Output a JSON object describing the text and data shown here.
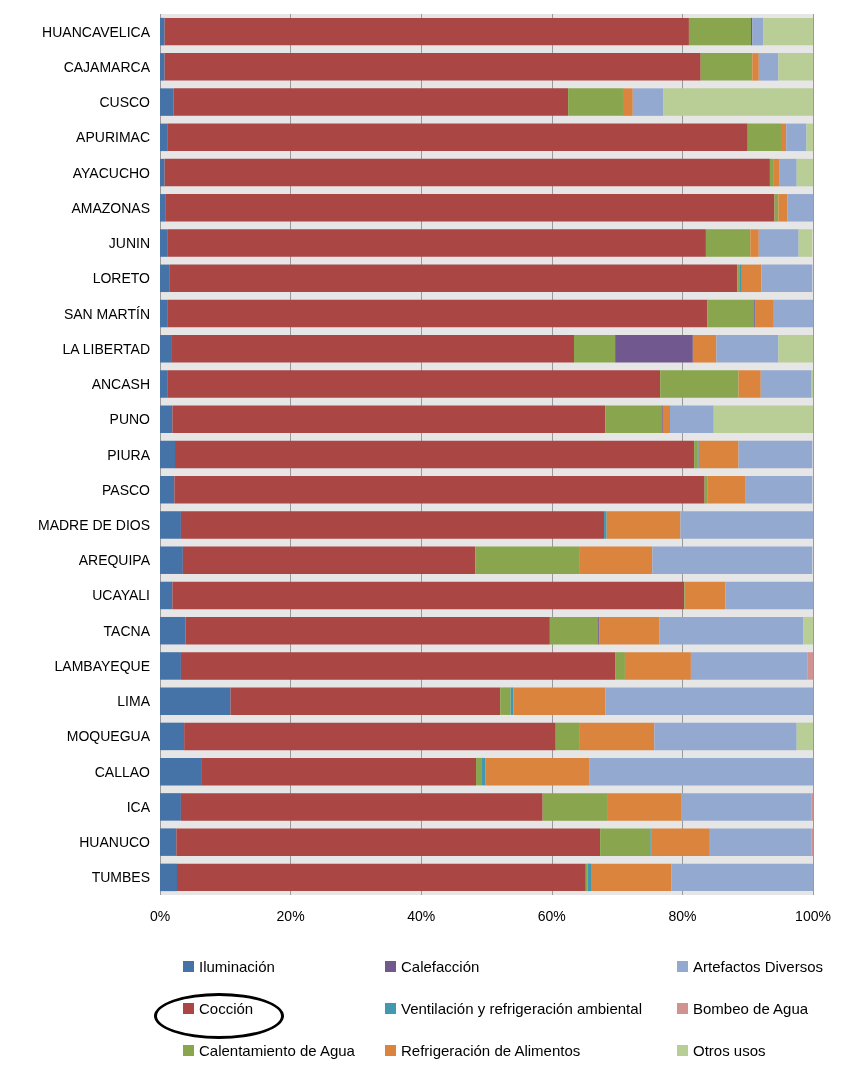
{
  "chart_data": {
    "type": "bar",
    "orientation": "horizontal",
    "stacked": true,
    "categories": [
      "HUANCAVELICA",
      "CAJAMARCA",
      "CUSCO",
      "APURIMAC",
      "AYACUCHO",
      "AMAZONAS",
      "JUNIN",
      "LORETO",
      "SAN MARTÍN",
      "LA LIBERTAD",
      "ANCASH",
      "PUNO",
      "PIURA",
      "PASCO",
      "MADRE DE DIOS",
      "AREQUIPA",
      "UCAYALI",
      "TACNA",
      "LAMBAYEQUE",
      "LIMA",
      "MOQUEGUA",
      "CALLAO",
      "ICA",
      "HUANUCO",
      "TUMBES"
    ],
    "series": [
      {
        "name": "Iluminación",
        "color": "#4572a7",
        "values": [
          0.7,
          0.7,
          2.1,
          1.2,
          0.7,
          0.8,
          1.2,
          1.5,
          1.2,
          1.7,
          1.2,
          1.9,
          2.3,
          2.2,
          3.2,
          3.5,
          1.9,
          3.9,
          3.2,
          10.8,
          3.7,
          6.3,
          3.2,
          2.5,
          2.6
        ]
      },
      {
        "name": "Cocción",
        "color": "#aa4643",
        "values": [
          80.3,
          82.1,
          60.4,
          88.8,
          92.7,
          93.3,
          82.4,
          86.9,
          82.6,
          61.7,
          75.4,
          66.3,
          79.5,
          81.2,
          64.8,
          44.8,
          78.4,
          55.8,
          66.5,
          41.3,
          56.9,
          42.1,
          55.4,
          64.9,
          62.6
        ]
      },
      {
        "name": "Calentamiento de Agua",
        "color": "#89a54e",
        "values": [
          9.5,
          7.9,
          8.4,
          5.1,
          0.6,
          0.6,
          6.8,
          0.4,
          7.2,
          6.3,
          12.0,
          8.6,
          0.5,
          0.4,
          0,
          16.0,
          0.1,
          7.4,
          1.5,
          1.6,
          3.7,
          0.9,
          9.9,
          7.7,
          0.3
        ]
      },
      {
        "name": "Calefacción",
        "color": "#71588f",
        "values": [
          0.2,
          0,
          0,
          0,
          0,
          0,
          null,
          0,
          0.2,
          11.9,
          0,
          0.2,
          0,
          0,
          0,
          0,
          0,
          0.2,
          0,
          0,
          0,
          0,
          0,
          0,
          0
        ]
      },
      {
        "name": "Ventilación y refrigeración ambiental",
        "color": "#4198af",
        "values": [
          0,
          0,
          0,
          0,
          0,
          0,
          0,
          0.3,
          0,
          0,
          0,
          0,
          0.2,
          0,
          0.4,
          0,
          0,
          0,
          0,
          0.4,
          0,
          0.5,
          0.1,
          0.2,
          0.5
        ]
      },
      {
        "name": "Refrigeración de Alimentos",
        "color": "#db843d",
        "values": [
          0,
          1.0,
          1.5,
          0.8,
          0.8,
          1.4,
          1.3,
          3.0,
          2.8,
          3.6,
          3.4,
          1.1,
          6.1,
          5.8,
          11.3,
          11.1,
          6.2,
          9.2,
          10.1,
          14.1,
          11.4,
          16.0,
          11.3,
          8.9,
          12.3
        ]
      },
      {
        "name": "Artefactos Diversos",
        "color": "#93a9cf",
        "values": [
          1.7,
          3.0,
          4.7,
          3.1,
          2.7,
          3.9,
          6.1,
          7.8,
          6.0,
          9.5,
          7.7,
          6.7,
          11.3,
          10.3,
          20.3,
          24.5,
          13.4,
          22.0,
          17.9,
          31.8,
          21.8,
          34.2,
          19.9,
          15.6,
          21.7
        ]
      },
      {
        "name": "Bombeo de Agua",
        "color": "#d19392",
        "values": [
          0,
          0,
          0,
          0,
          0,
          0,
          0,
          null,
          0,
          0,
          0,
          0,
          null,
          null,
          0,
          0,
          0,
          0,
          0.8,
          0,
          0,
          0,
          0.2,
          0.2,
          0
        ]
      },
      {
        "name": "Otros usos",
        "color": "#b9cd96",
        "values": [
          7.6,
          5.3,
          22.9,
          1.0,
          2.5,
          0,
          2.1,
          0,
          0,
          5.3,
          0.3,
          15.2,
          0,
          0,
          0,
          null,
          0,
          1.5,
          0,
          0,
          2.5,
          0,
          0,
          0,
          0
        ]
      }
    ],
    "xlim": [
      0,
      100
    ],
    "xticks": [
      {
        "value": 0,
        "label": "0%"
      },
      {
        "value": 20,
        "label": "20%"
      },
      {
        "value": 40,
        "label": "40%"
      },
      {
        "value": 60,
        "label": "60%"
      },
      {
        "value": 80,
        "label": "80%"
      },
      {
        "value": 100,
        "label": "100%"
      }
    ],
    "grid": "x",
    "legend": "bottom"
  }
}
